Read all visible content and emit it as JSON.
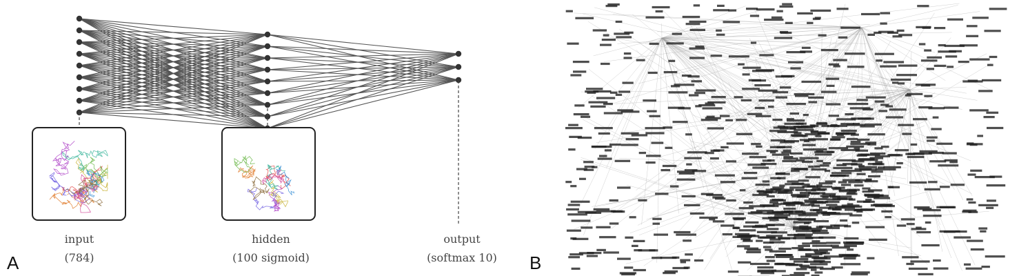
{
  "panel_a": {
    "letter": "A",
    "layers": [
      {
        "name": "input",
        "size": "(784)",
        "visible_nodes": 9
      },
      {
        "name": "hidden",
        "size": "(100 sigmoid)",
        "visible_nodes": 9
      },
      {
        "name": "output",
        "size": "(softmax 10)",
        "visible_nodes": 3
      }
    ],
    "colors": {
      "edge": "#555555",
      "node": "#333333",
      "box": "#222222"
    }
  },
  "panel_b": {
    "letter": "B",
    "colors": {
      "edge": "#9a9a9a",
      "label": "#222222"
    }
  }
}
